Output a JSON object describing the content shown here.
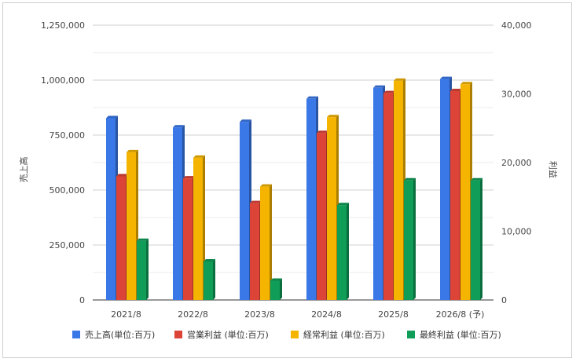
{
  "chart_data": {
    "type": "bar",
    "categories": [
      "2021/8",
      "2022/8",
      "2023/8",
      "2024/8",
      "2025/8",
      "2026/8 (予)"
    ],
    "left_axis": {
      "label": "売上高",
      "ylim": [
        0,
        1250000
      ],
      "ticks": [
        "0",
        "250,000",
        "500,000",
        "750,000",
        "1,000,000",
        "1,250,000"
      ]
    },
    "right_axis": {
      "label": "利益",
      "ylim": [
        0,
        40000
      ],
      "ticks": [
        "0",
        "10,000",
        "20,000",
        "30,000",
        "40,000"
      ]
    },
    "series": [
      {
        "name": "売上高(単位:百万)",
        "axis": "left",
        "color": "#3b78e7",
        "values": [
          827000,
          785000,
          810000,
          915000,
          965000,
          1005000
        ]
      },
      {
        "name": "営業利益 (単位:百万)",
        "axis": "right",
        "color": "#dc4437",
        "values": [
          18000,
          17700,
          14100,
          24300,
          30100,
          30400
        ]
      },
      {
        "name": "経常利益 (単位:百万)",
        "axis": "right",
        "color": "#f4b400",
        "values": [
          21500,
          20700,
          16500,
          26600,
          31900,
          31400
        ]
      },
      {
        "name": "最終利益 (単位:百万)",
        "axis": "right",
        "color": "#0f9d58",
        "values": [
          8600,
          5600,
          2800,
          13800,
          17400,
          17400
        ]
      }
    ],
    "grid": true,
    "legend_position": "bottom"
  }
}
